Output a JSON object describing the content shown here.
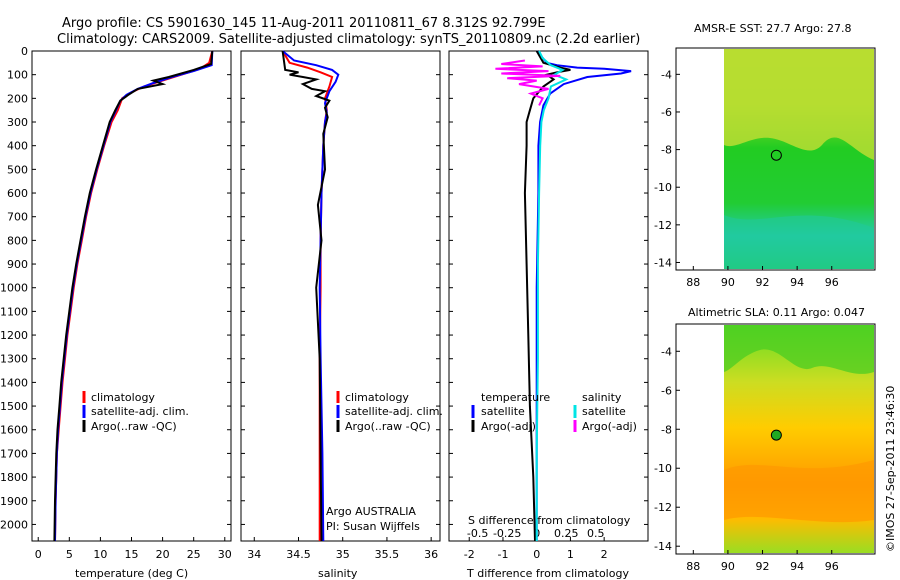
{
  "header": {
    "line1": "Argo profile: CS 5901630_145 11-Aug-2011 20110811_67 8.312S 92.799E",
    "line2": "Climatology: CARS2009. Satellite-adjusted climatology: synTS_20110809.nc (2.2d earlier)"
  },
  "colors": {
    "climatology": "#ff0000",
    "satellite": "#0000ff",
    "argo": "#000000",
    "sal_satellite": "#00e5e5",
    "sal_argo": "#ff00ff",
    "sst_green": "#22cc33",
    "sla_yellow": "#ffcc00",
    "sla_orange": "#ff9900"
  },
  "chart_data": [
    {
      "id": "temperature",
      "type": "line",
      "xlabel": "temperature (deg C)",
      "ylabel": "",
      "xlim": [
        -1,
        31
      ],
      "ylim": [
        2070,
        0
      ],
      "xticks": [
        0,
        5,
        10,
        15,
        20,
        25,
        30
      ],
      "yticks": [
        0,
        100,
        200,
        300,
        400,
        500,
        600,
        700,
        800,
        900,
        1000,
        1100,
        1200,
        1300,
        1400,
        1500,
        1600,
        1700,
        1800,
        1900,
        2000
      ],
      "legend": [
        "climatology",
        "satellite-adj. clim.",
        "Argo(..raw -QC)"
      ],
      "series": [
        {
          "name": "climatology",
          "color_key": "climatology",
          "x": [
            28,
            27.5,
            26,
            23,
            20,
            17,
            15,
            13.5,
            12.8,
            11.8,
            10.6,
            9.5,
            8.5,
            7.7,
            7.0,
            6.3,
            5.7,
            5.2,
            4.7,
            4.3,
            3.9,
            3.6,
            3.3,
            3.0,
            2.8,
            2.7
          ],
          "y": [
            0,
            50,
            75,
            100,
            125,
            150,
            175,
            200,
            250,
            300,
            400,
            500,
            600,
            700,
            800,
            900,
            1000,
            1100,
            1200,
            1300,
            1400,
            1500,
            1600,
            1700,
            1900,
            2070
          ]
        },
        {
          "name": "satellite-adj. clim.",
          "color_key": "satellite",
          "x": [
            28,
            27.9,
            25,
            21.5,
            18.5,
            16,
            14.2,
            13.2,
            12.5,
            11.6,
            10.5,
            9.4,
            8.4,
            7.6,
            6.9,
            6.2,
            5.6,
            5.1,
            4.6,
            4.2,
            3.8,
            3.5,
            3.2,
            3.0,
            2.8,
            2.7
          ],
          "y": [
            0,
            60,
            85,
            110,
            135,
            160,
            185,
            210,
            250,
            300,
            400,
            500,
            600,
            700,
            800,
            900,
            1000,
            1100,
            1200,
            1300,
            1400,
            1500,
            1600,
            1700,
            1900,
            2070
          ]
        },
        {
          "name": "Argo(..raw -QC)",
          "color_key": "argo",
          "x": [
            28,
            27.8,
            25,
            21,
            18.5,
            20,
            16,
            14.5,
            13.2,
            12.4,
            11.5,
            10.4,
            9.3,
            8.3,
            7.5,
            6.8,
            6.1,
            5.5,
            5.0,
            4.5,
            4.1,
            3.7,
            3.4,
            3.1,
            2.9,
            2.7,
            2.6
          ],
          "y": [
            0,
            55,
            80,
            110,
            125,
            140,
            160,
            185,
            210,
            250,
            300,
            400,
            500,
            600,
            700,
            800,
            900,
            1000,
            1100,
            1200,
            1300,
            1400,
            1500,
            1600,
            1700,
            1900,
            2070
          ]
        }
      ]
    },
    {
      "id": "salinity",
      "type": "line",
      "xlabel": "salinity",
      "xlim": [
        33.85,
        36.1
      ],
      "ylim": [
        2070,
        0
      ],
      "xticks": [
        34,
        34.5,
        35,
        35.5,
        36
      ],
      "legend": [
        "climatology",
        "satellite-adj. clim.",
        "Argo(..raw -QC)"
      ],
      "annotation": [
        "Argo AUSTRALIA",
        "PI: Susan Wijffels"
      ],
      "series": [
        {
          "name": "climatology",
          "color_key": "climatology",
          "x": [
            34.32,
            34.4,
            34.6,
            34.75,
            34.88,
            34.85,
            34.8,
            34.82,
            34.8,
            34.78,
            34.76,
            34.75,
            34.75,
            34.74,
            34.74,
            34.74
          ],
          "y": [
            0,
            50,
            70,
            90,
            110,
            150,
            200,
            250,
            300,
            400,
            600,
            800,
            1000,
            1300,
            1700,
            2070
          ]
        },
        {
          "name": "satellite-adj. clim.",
          "color_key": "satellite",
          "x": [
            34.32,
            34.45,
            34.7,
            34.88,
            34.95,
            34.92,
            34.85,
            34.8,
            34.82,
            34.8,
            34.78,
            34.76,
            34.75,
            34.74,
            34.75,
            34.77,
            34.78
          ],
          "y": [
            0,
            40,
            60,
            80,
            100,
            130,
            170,
            220,
            260,
            300,
            400,
            600,
            800,
            1000,
            1300,
            1700,
            2070
          ]
        },
        {
          "name": "Argo(..raw -QC)",
          "color_key": "argo",
          "x": [
            34.32,
            34.35,
            34.5,
            34.4,
            34.55,
            34.7,
            34.55,
            34.65,
            34.8,
            34.7,
            34.85,
            34.8,
            34.83,
            34.78,
            34.8,
            34.72,
            34.76,
            34.7,
            34.74,
            34.75,
            34.76
          ],
          "y": [
            0,
            80,
            90,
            100,
            110,
            120,
            140,
            160,
            170,
            190,
            210,
            240,
            280,
            350,
            500,
            650,
            800,
            1000,
            1300,
            1700,
            2070
          ]
        }
      ]
    },
    {
      "id": "difference",
      "type": "line",
      "xlabel": "T difference from climatology",
      "top_axis_label": "S difference from climatology",
      "xlim": [
        -2.6,
        3.3
      ],
      "ylim": [
        2070,
        0
      ],
      "xticks": [
        -2,
        -1,
        0,
        1,
        2
      ],
      "top_ticks": [
        -0.5,
        -0.25,
        0,
        0.25,
        0.5
      ],
      "legend_groups": {
        "temperature": {
          "title": "temperature",
          "items": [
            "satellite",
            "Argo(-adj)"
          ]
        },
        "salinity": {
          "title": "salinity",
          "items": [
            "satellite",
            "Argo(-adj)"
          ]
        }
      },
      "series": [
        {
          "name": "temperature satellite",
          "color_key": "satellite",
          "x": [
            0,
            0.3,
            0.6,
            1.2,
            2.0,
            2.8,
            2.5,
            1.5,
            0.8,
            0.4,
            0.2,
            0.1,
            0.05,
            0.05,
            0,
            0,
            0
          ],
          "y": [
            0,
            50,
            60,
            70,
            75,
            85,
            95,
            110,
            140,
            180,
            230,
            300,
            400,
            600,
            1000,
            1500,
            2070
          ]
        },
        {
          "name": "temperature Argo(-adj)",
          "color_key": "argo",
          "x": [
            0,
            0.2,
            0.7,
            1.0,
            0.6,
            0.3,
            0.5,
            0.2,
            -0.1,
            -0.2,
            -0.3,
            -0.3,
            -0.35,
            -0.3,
            -0.25,
            -0.2,
            -0.1,
            -0.05
          ],
          "y": [
            0,
            50,
            70,
            80,
            90,
            100,
            120,
            150,
            200,
            250,
            300,
            400,
            600,
            900,
            1200,
            1500,
            1800,
            2070
          ]
        },
        {
          "name": "salinity satellite",
          "color_key": "sal_satellite",
          "x": [
            0.02,
            0.05,
            0.12,
            0.22,
            0.15,
            0.25,
            0.12,
            0.1,
            0.06,
            0.04,
            0.03,
            0.02,
            0.01,
            0.01,
            0,
            0
          ],
          "y": [
            0,
            30,
            60,
            80,
            100,
            120,
            150,
            200,
            250,
            300,
            400,
            600,
            900,
            1300,
            1700,
            2070
          ]
        },
        {
          "name": "salinity Argo(-adj)",
          "color_key": "sal_argo",
          "x": [
            -0.1,
            -0.3,
            0.05,
            -0.35,
            0.1,
            -0.3,
            0.2,
            -0.25,
            0.0,
            -0.15,
            0.1,
            -0.05,
            0.05,
            0.02
          ],
          "y": [
            40,
            55,
            65,
            75,
            85,
            95,
            105,
            115,
            125,
            140,
            160,
            180,
            200,
            230
          ]
        }
      ]
    },
    {
      "id": "sst_map",
      "type": "heatmap",
      "title": "AMSR-E SST: 27.7 Argo: 27.8",
      "xlim": [
        87,
        98.5
      ],
      "ylim": [
        -14.4,
        -2.6
      ],
      "xticks": [
        88,
        90,
        92,
        94,
        96
      ],
      "yticks": [
        -4,
        -6,
        -8,
        -10,
        -12,
        -14
      ],
      "marker": {
        "lon": 92.8,
        "lat": -8.3
      }
    },
    {
      "id": "sla_map",
      "type": "heatmap",
      "title": "Altimetric SLA: 0.11 Argo: 0.047",
      "xlim": [
        87,
        98.5
      ],
      "ylim": [
        -14.4,
        -2.6
      ],
      "xticks": [
        88,
        90,
        92,
        94,
        96
      ],
      "yticks": [
        -4,
        -6,
        -8,
        -10,
        -12,
        -14
      ],
      "marker": {
        "lon": 92.8,
        "lat": -8.3
      }
    }
  ],
  "footer": {
    "stamp": "©IMOS 27-Sep-2011 23:46:30"
  }
}
